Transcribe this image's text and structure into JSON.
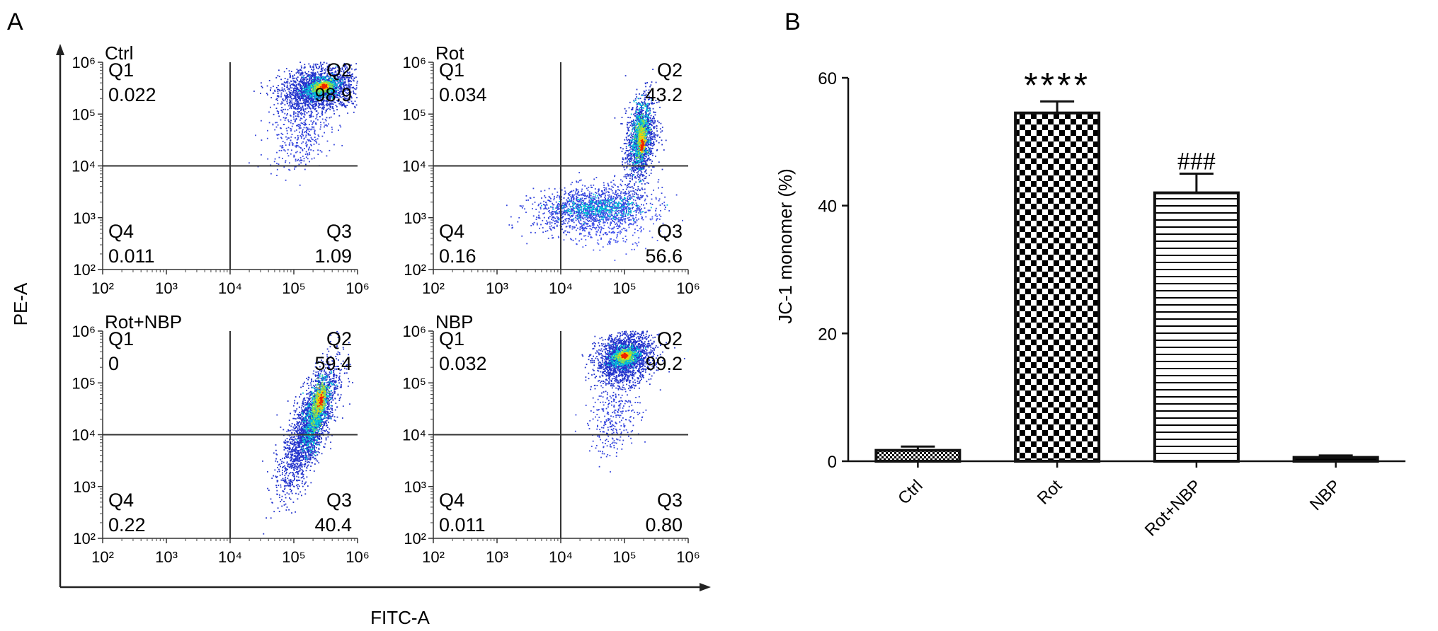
{
  "panel_a": {
    "letter": "A",
    "x_axis_title": "FITC-A",
    "y_axis_title": "PE-A",
    "tick_labels": [
      "10²",
      "10³",
      "10⁴",
      "10⁵",
      "10⁶"
    ]
  },
  "panel_b": {
    "letter": "B",
    "y_axis_title": "JC-1 monomer (%)"
  },
  "chart_data": [
    {
      "type": "scatter",
      "title": "Ctrl",
      "xlabel": "FITC-A",
      "ylabel": "PE-A",
      "xscale": "log",
      "yscale": "log",
      "xlim": [
        100,
        1000000
      ],
      "ylim": [
        100,
        1000000
      ],
      "gate": {
        "x": 10000,
        "y": 10000
      },
      "quadrants": [
        {
          "name": "Q1",
          "value": "0.022"
        },
        {
          "name": "Q2",
          "value": "98.9"
        },
        {
          "name": "Q3",
          "value": "1.09"
        },
        {
          "name": "Q4",
          "value": "0.011"
        }
      ],
      "populations": [
        {
          "count": 1900,
          "cx": 250000,
          "cy": 300000,
          "sx": 0.3,
          "sy": 0.22,
          "rho": 0.2,
          "color": "#2233cc"
        },
        {
          "count": 350,
          "cx": 120000,
          "cy": 40000,
          "sx": 0.25,
          "sy": 0.35,
          "rho": 0.2,
          "color": "#3344dd"
        },
        {
          "count": 500,
          "cx": 270000,
          "cy": 320000,
          "sx": 0.12,
          "sy": 0.09,
          "rho": 0.3,
          "color": "#00c3d8"
        },
        {
          "count": 280,
          "cx": 280000,
          "cy": 330000,
          "sx": 0.07,
          "sy": 0.05,
          "rho": 0.3,
          "color": "#88e050"
        },
        {
          "count": 130,
          "cx": 290000,
          "cy": 340000,
          "sx": 0.04,
          "sy": 0.03,
          "rho": 0.3,
          "color": "#ffcc00"
        },
        {
          "count": 70,
          "cx": 300000,
          "cy": 340000,
          "sx": 0.02,
          "sy": 0.02,
          "rho": 0.2,
          "color": "#ee2200"
        }
      ]
    },
    {
      "type": "scatter",
      "title": "Rot",
      "xlabel": "FITC-A",
      "ylabel": "PE-A",
      "xscale": "log",
      "yscale": "log",
      "xlim": [
        100,
        1000000
      ],
      "ylim": [
        100,
        1000000
      ],
      "gate": {
        "x": 10000,
        "y": 10000
      },
      "quadrants": [
        {
          "name": "Q1",
          "value": "0.034"
        },
        {
          "name": "Q2",
          "value": "43.2"
        },
        {
          "name": "Q3",
          "value": "56.6"
        },
        {
          "name": "Q4",
          "value": "0.16"
        }
      ],
      "populations": [
        {
          "count": 1200,
          "cx": 180000,
          "cy": 30000,
          "sx": 0.12,
          "sy": 0.45,
          "rho": 0.3,
          "color": "#2233cc"
        },
        {
          "count": 1300,
          "cx": 30000,
          "cy": 1500,
          "sx": 0.45,
          "sy": 0.22,
          "rho": 0.2,
          "color": "#3344dd"
        },
        {
          "count": 300,
          "cx": 60000,
          "cy": 800,
          "sx": 0.35,
          "sy": 0.25,
          "rho": 0.1,
          "color": "#4455ee"
        },
        {
          "count": 420,
          "cx": 180000,
          "cy": 40000,
          "sx": 0.07,
          "sy": 0.28,
          "rho": 0.3,
          "color": "#00c3d8"
        },
        {
          "count": 260,
          "cx": 40000,
          "cy": 1500,
          "sx": 0.3,
          "sy": 0.1,
          "rho": 0.1,
          "color": "#00c3d8"
        },
        {
          "count": 200,
          "cx": 185000,
          "cy": 35000,
          "sx": 0.04,
          "sy": 0.18,
          "rho": 0.2,
          "color": "#88e050"
        },
        {
          "count": 80,
          "cx": 190000,
          "cy": 30000,
          "sx": 0.025,
          "sy": 0.1,
          "rho": 0.2,
          "color": "#ffcc00"
        },
        {
          "count": 40,
          "cx": 190000,
          "cy": 25000,
          "sx": 0.015,
          "sy": 0.06,
          "rho": 0.2,
          "color": "#ee2200"
        }
      ]
    },
    {
      "type": "scatter",
      "title": "Rot+NBP",
      "xlabel": "FITC-A",
      "ylabel": "PE-A",
      "xscale": "log",
      "yscale": "log",
      "xlim": [
        100,
        1000000
      ],
      "ylim": [
        100,
        1000000
      ],
      "gate": {
        "x": 10000,
        "y": 10000
      },
      "quadrants": [
        {
          "name": "Q1",
          "value": "0"
        },
        {
          "name": "Q2",
          "value": "59.4"
        },
        {
          "name": "Q3",
          "value": "40.4"
        },
        {
          "name": "Q4",
          "value": "0.22"
        }
      ],
      "populations": [
        {
          "count": 2200,
          "cx": 180000,
          "cy": 15000,
          "sx": 0.22,
          "sy": 0.6,
          "rho": 0.75,
          "color": "#2233cc"
        },
        {
          "count": 550,
          "cx": 220000,
          "cy": 25000,
          "sx": 0.1,
          "sy": 0.35,
          "rho": 0.7,
          "color": "#00c3d8"
        },
        {
          "count": 280,
          "cx": 250000,
          "cy": 40000,
          "sx": 0.06,
          "sy": 0.2,
          "rho": 0.6,
          "color": "#88e050"
        },
        {
          "count": 100,
          "cx": 260000,
          "cy": 45000,
          "sx": 0.035,
          "sy": 0.12,
          "rho": 0.5,
          "color": "#ffcc00"
        },
        {
          "count": 40,
          "cx": 270000,
          "cy": 50000,
          "sx": 0.02,
          "sy": 0.07,
          "rho": 0.4,
          "color": "#ee2200"
        }
      ]
    },
    {
      "type": "scatter",
      "title": "NBP",
      "xlabel": "FITC-A",
      "ylabel": "PE-A",
      "xscale": "log",
      "yscale": "log",
      "xlim": [
        100,
        1000000
      ],
      "ylim": [
        100,
        1000000
      ],
      "gate": {
        "x": 10000,
        "y": 10000
      },
      "quadrants": [
        {
          "name": "Q1",
          "value": "0.032"
        },
        {
          "name": "Q2",
          "value": "99.2"
        },
        {
          "name": "Q3",
          "value": "0.80"
        },
        {
          "name": "Q4",
          "value": "0.011"
        }
      ],
      "populations": [
        {
          "count": 1900,
          "cx": 100000,
          "cy": 300000,
          "sx": 0.22,
          "sy": 0.25,
          "rho": 0.2,
          "color": "#2233cc"
        },
        {
          "count": 280,
          "cx": 70000,
          "cy": 20000,
          "sx": 0.2,
          "sy": 0.35,
          "rho": 0.3,
          "color": "#3344dd"
        },
        {
          "count": 500,
          "cx": 100000,
          "cy": 320000,
          "sx": 0.1,
          "sy": 0.09,
          "rho": 0.2,
          "color": "#00c3d8"
        },
        {
          "count": 280,
          "cx": 100000,
          "cy": 330000,
          "sx": 0.06,
          "sy": 0.05,
          "rho": 0.2,
          "color": "#88e050"
        },
        {
          "count": 130,
          "cx": 100000,
          "cy": 330000,
          "sx": 0.035,
          "sy": 0.03,
          "rho": 0.2,
          "color": "#ffcc00"
        },
        {
          "count": 70,
          "cx": 100000,
          "cy": 330000,
          "sx": 0.02,
          "sy": 0.02,
          "rho": 0.2,
          "color": "#ee2200"
        }
      ]
    },
    {
      "type": "bar",
      "categories": [
        "Ctrl",
        "Rot",
        "Rot+NBP",
        "NBP"
      ],
      "values": [
        1.7,
        54.5,
        42.0,
        0.6
      ],
      "errors": [
        0.6,
        1.8,
        3.0,
        0.3
      ],
      "patterns": [
        "dense-dots",
        "checkerboard",
        "horizontal-lines",
        "solid"
      ],
      "annotations": [
        "",
        "****",
        "###",
        ""
      ],
      "ylabel": "JC-1 monomer (%)",
      "ylim": [
        0,
        60
      ],
      "yticks": [
        0,
        20,
        40,
        60
      ],
      "grid": false
    }
  ]
}
